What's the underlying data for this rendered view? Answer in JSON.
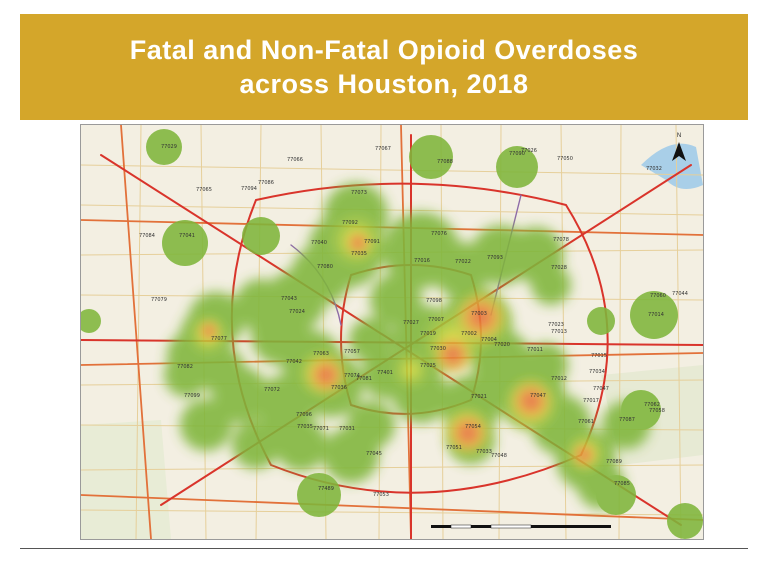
{
  "slide": {
    "title_line1": "Fatal and Non-Fatal Opioid Overdoses",
    "title_line2": "across Houston, 2018"
  },
  "colors": {
    "title_background": "#d4a62a",
    "title_text": "#ffffff",
    "map_base": "#f3efe2",
    "heat_low": "#7fb63b",
    "heat_mid": "#d9d834",
    "heat_high": "#e2603a"
  },
  "map": {
    "north_arrow_label": "N",
    "north_arrow_icon": "north-arrow-icon",
    "legend": "none",
    "zip_labels": [
      "77029",
      "77067",
      "77090",
      "77088",
      "77040",
      "77091",
      "77092",
      "77080",
      "77076",
      "77016",
      "77022",
      "77093",
      "77078",
      "77028",
      "77043",
      "77024",
      "77079",
      "77077",
      "77082",
      "77042",
      "77063",
      "77057",
      "77027",
      "77019",
      "77002",
      "77020",
      "77036",
      "77074",
      "77071",
      "77081",
      "77025",
      "77021",
      "77004",
      "77030",
      "77054",
      "77035",
      "77045",
      "77033",
      "77087",
      "77017",
      "77012",
      "77061",
      "77051",
      "77048",
      "77489",
      "77053",
      "77086",
      "77066",
      "77026",
      "77013",
      "77015",
      "77060",
      "77065",
      "77094",
      "77084",
      "77041",
      "77007",
      "77098",
      "77047",
      "77011",
      "77023",
      "77003",
      "77073",
      "77099",
      "77072",
      "77031",
      "77035",
      "77047",
      "77034",
      "77044",
      "77014",
      "77032",
      "77050",
      "77062",
      "77058",
      "77089",
      "77085",
      "77096",
      "77401"
    ]
  }
}
